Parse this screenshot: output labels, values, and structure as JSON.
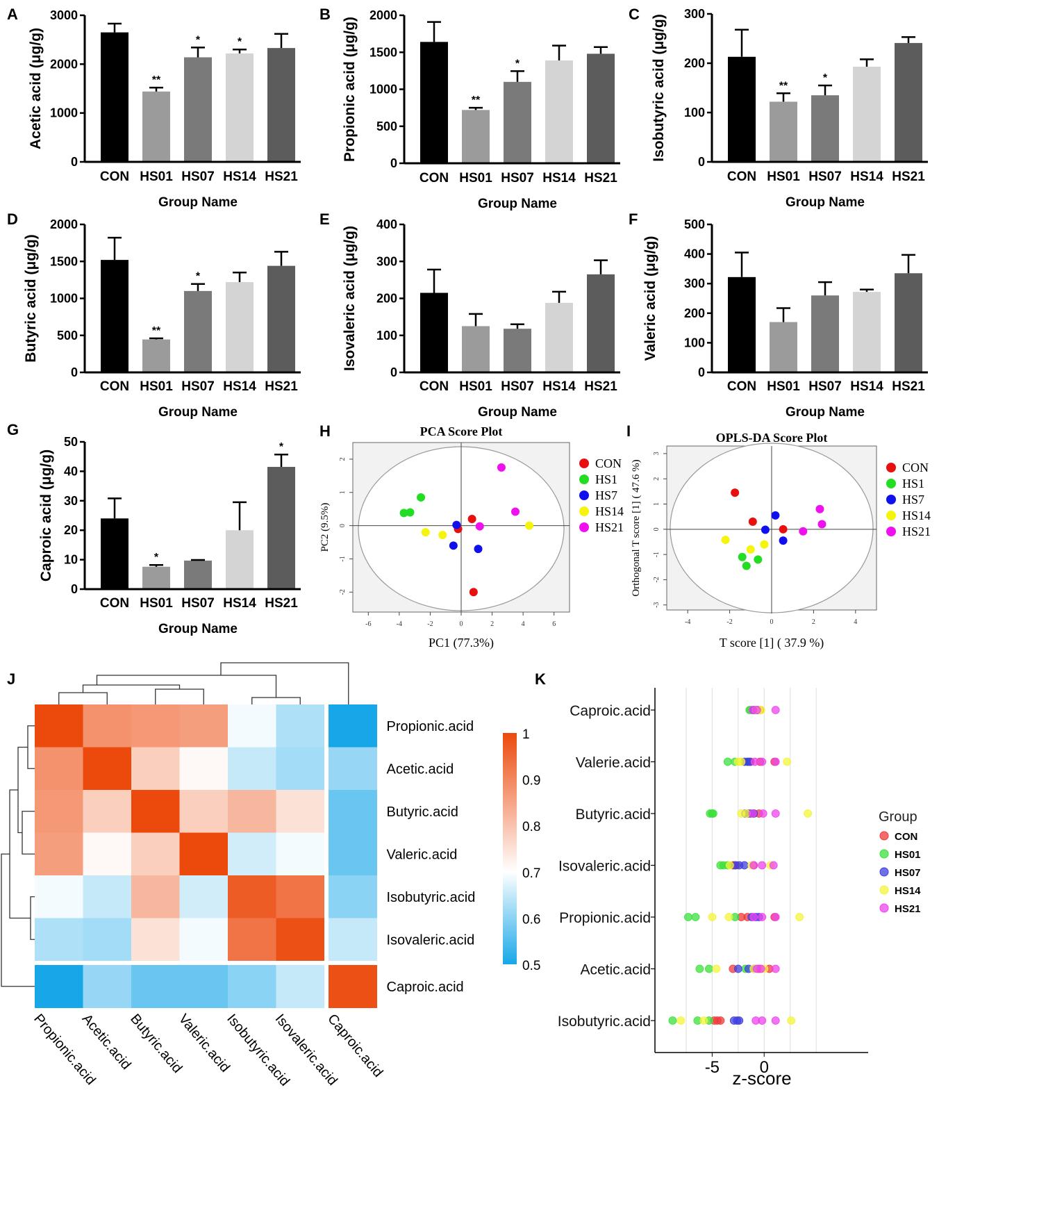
{
  "bar_panels": [
    {
      "letter": "A",
      "type": "bar",
      "ylabel": "Acetic acid (μg/g)",
      "xlabel": "Group Name",
      "ylim": [
        0,
        3000
      ],
      "ticks": [
        0,
        1000,
        2000,
        3000
      ],
      "categories": [
        "CON",
        "HS01",
        "HS07",
        "HS14",
        "HS21"
      ],
      "values": [
        2650,
        1440,
        2140,
        2220,
        2330
      ],
      "errors": [
        180,
        80,
        200,
        80,
        290
      ],
      "sig": [
        "",
        "**",
        "*",
        "*",
        ""
      ],
      "colors": [
        "#000000",
        "#9b9b9b",
        "#7a7a7a",
        "#d4d4d4",
        "#5c5c5c"
      ]
    },
    {
      "letter": "B",
      "type": "bar",
      "ylabel": "Propionic acid  (μg/g)",
      "xlabel": "Group Name",
      "ylim": [
        0,
        2000
      ],
      "ticks": [
        0,
        500,
        1000,
        1500,
        2000
      ],
      "categories": [
        "CON",
        "HS01",
        "HS07",
        "HS14",
        "HS21"
      ],
      "values": [
        1640,
        720,
        1100,
        1390,
        1480
      ],
      "errors": [
        270,
        30,
        145,
        200,
        90
      ],
      "sig": [
        "",
        "**",
        "*",
        "",
        ""
      ],
      "colors": [
        "#000000",
        "#9b9b9b",
        "#7a7a7a",
        "#d4d4d4",
        "#5c5c5c"
      ]
    },
    {
      "letter": "C",
      "type": "bar",
      "ylabel": "Isobutyric acid (μg/g)",
      "xlabel": "Group Name",
      "ylim": [
        0,
        300
      ],
      "ticks": [
        0,
        100,
        200,
        300
      ],
      "categories": [
        "CON",
        "HS01",
        "HS07",
        "HS14",
        "HS21"
      ],
      "values": [
        213,
        122,
        135,
        193,
        241
      ],
      "errors": [
        55,
        17,
        20,
        15,
        12
      ],
      "sig": [
        "",
        "**",
        "*",
        "",
        ""
      ],
      "colors": [
        "#000000",
        "#9b9b9b",
        "#7a7a7a",
        "#d4d4d4",
        "#5c5c5c"
      ]
    },
    {
      "letter": "D",
      "type": "bar",
      "ylabel": "Butyric acid (μg/g)",
      "xlabel": "Group Name",
      "ylim": [
        0,
        2000
      ],
      "ticks": [
        0,
        500,
        1000,
        1500,
        2000
      ],
      "categories": [
        "CON",
        "HS01",
        "HS07",
        "HS14",
        "HS21"
      ],
      "values": [
        1520,
        445,
        1100,
        1220,
        1440
      ],
      "errors": [
        300,
        15,
        95,
        130,
        190
      ],
      "sig": [
        "",
        "**",
        "*",
        "",
        ""
      ],
      "colors": [
        "#000000",
        "#9b9b9b",
        "#7a7a7a",
        "#d4d4d4",
        "#5c5c5c"
      ]
    },
    {
      "letter": "E",
      "type": "bar",
      "ylabel": "Isovaleric acid (μg/g)",
      "xlabel": "Group Name",
      "ylim": [
        0,
        400
      ],
      "ticks": [
        0,
        100,
        200,
        300,
        400
      ],
      "categories": [
        "CON",
        "HS01",
        "HS07",
        "HS14",
        "HS21"
      ],
      "values": [
        215,
        125,
        118,
        188,
        265
      ],
      "errors": [
        63,
        33,
        12,
        30,
        38
      ],
      "sig": [
        "",
        "",
        "",
        "",
        ""
      ],
      "colors": [
        "#000000",
        "#9b9b9b",
        "#7a7a7a",
        "#d4d4d4",
        "#5c5c5c"
      ]
    },
    {
      "letter": "F",
      "type": "bar",
      "ylabel": "Valeric acid (μg/g)",
      "xlabel": "Group Name",
      "ylim": [
        0,
        500
      ],
      "ticks": [
        0,
        100,
        200,
        300,
        400,
        500
      ],
      "categories": [
        "CON",
        "HS01",
        "HS07",
        "HS14",
        "HS21"
      ],
      "values": [
        322,
        170,
        260,
        272,
        335
      ],
      "errors": [
        83,
        47,
        45,
        8,
        62
      ],
      "sig": [
        "",
        "",
        "",
        "",
        ""
      ],
      "colors": [
        "#000000",
        "#9b9b9b",
        "#7a7a7a",
        "#d4d4d4",
        "#5c5c5c"
      ]
    },
    {
      "letter": "G",
      "type": "bar",
      "ylabel": "Caproic acid (μg/g)",
      "xlabel": "Group Name",
      "ylim": [
        0,
        50
      ],
      "ticks": [
        0,
        10,
        20,
        30,
        40,
        50
      ],
      "categories": [
        "CON",
        "HS01",
        "HS07",
        "HS14",
        "HS21"
      ],
      "values": [
        24,
        7.6,
        9.7,
        20,
        41.5
      ],
      "errors": [
        6.8,
        0.6,
        0.2,
        9.5,
        4.2
      ],
      "sig": [
        "",
        "*",
        "",
        "",
        "*"
      ],
      "colors": [
        "#000000",
        "#9b9b9b",
        "#7a7a7a",
        "#d4d4d4",
        "#5c5c5c"
      ]
    }
  ],
  "pca": {
    "letter": "H",
    "type": "scatter",
    "title": "PCA Score Plot",
    "xlabel": "PC1 (77.3%)",
    "ylabel": "PC2 (9.5%)",
    "xlim": [
      -7,
      7
    ],
    "ylim": [
      -2.6,
      2.5
    ],
    "xticks": [
      -6,
      -4,
      -2,
      0,
      2,
      4,
      6
    ],
    "yticks": [
      -2,
      -1,
      0,
      1,
      2
    ],
    "groups": [
      {
        "name": "CON",
        "color": "#e8100f",
        "points": [
          [
            0.7,
            0.2
          ],
          [
            -0.2,
            -0.1
          ],
          [
            0.8,
            -2.0
          ]
        ]
      },
      {
        "name": "HS1",
        "color": "#22dd22",
        "points": [
          [
            -2.6,
            0.85
          ],
          [
            -3.3,
            0.4
          ],
          [
            -3.7,
            0.38
          ]
        ]
      },
      {
        "name": "HS7",
        "color": "#1010ee",
        "points": [
          [
            -0.3,
            0.02
          ],
          [
            -0.5,
            -0.6
          ],
          [
            1.1,
            -0.7
          ]
        ]
      },
      {
        "name": "HS14",
        "color": "#f4f40c",
        "points": [
          [
            -2.3,
            -0.2
          ],
          [
            -1.2,
            -0.28
          ],
          [
            4.4,
            0.0
          ]
        ]
      },
      {
        "name": "HS21",
        "color": "#ee11ee",
        "points": [
          [
            2.6,
            1.75
          ],
          [
            3.5,
            0.42
          ],
          [
            1.2,
            -0.02
          ]
        ]
      }
    ]
  },
  "opls": {
    "letter": "I",
    "type": "scatter",
    "title": "OPLS-DA Score Plot",
    "xlabel": "T score [1] ( 37.9 %)",
    "ylabel": "Orthogonal T score [1] ( 47.6 %)",
    "xlim": [
      -5,
      5
    ],
    "ylim": [
      -3.2,
      3.3
    ],
    "xticks": [
      -4,
      -2,
      0,
      2,
      4
    ],
    "yticks": [
      -3,
      -2,
      -1,
      0,
      1,
      2,
      3
    ],
    "groups": [
      {
        "name": "CON",
        "color": "#e8100f",
        "points": [
          [
            -1.75,
            1.45
          ],
          [
            -0.9,
            0.3
          ],
          [
            0.55,
            0.0
          ]
        ]
      },
      {
        "name": "HS1",
        "color": "#22dd22",
        "points": [
          [
            -1.4,
            -1.1
          ],
          [
            -1.2,
            -1.45
          ],
          [
            -0.65,
            -1.2
          ]
        ]
      },
      {
        "name": "HS7",
        "color": "#1010ee",
        "points": [
          [
            0.18,
            0.55
          ],
          [
            -0.3,
            -0.02
          ],
          [
            0.55,
            -0.45
          ]
        ]
      },
      {
        "name": "HS14",
        "color": "#f4f40c",
        "points": [
          [
            -2.2,
            -0.42
          ],
          [
            -1.0,
            -0.8
          ],
          [
            -0.35,
            -0.6
          ]
        ]
      },
      {
        "name": "HS21",
        "color": "#ee11ee",
        "points": [
          [
            1.5,
            -0.08
          ],
          [
            2.3,
            0.8
          ],
          [
            2.4,
            0.2
          ]
        ]
      }
    ]
  },
  "heatmap": {
    "letter": "J",
    "type": "heatmap",
    "row_labels": [
      "Propionic.acid",
      "Acetic.acid",
      "Butyric.acid",
      "Valeric.acid",
      "Isobutyric.acid",
      "Isovaleric.acid",
      "Caproic.acid"
    ],
    "col_labels": [
      "Propionic.acid",
      "Acetic.acid",
      "Butyric.acid",
      "Valeric.acid",
      "Isobutyric.acid",
      "Isovaleric.acid",
      "Caproic.acid"
    ],
    "values": [
      [
        1.0,
        0.88,
        0.87,
        0.86,
        0.69,
        0.63,
        0.5
      ],
      [
        0.88,
        1.0,
        0.78,
        0.71,
        0.65,
        0.62,
        0.61
      ],
      [
        0.87,
        0.78,
        1.0,
        0.78,
        0.82,
        0.75,
        0.57
      ],
      [
        0.86,
        0.71,
        0.78,
        1.0,
        0.66,
        0.69,
        0.57
      ],
      [
        0.69,
        0.65,
        0.82,
        0.66,
        0.97,
        0.93,
        0.6
      ],
      [
        0.63,
        0.62,
        0.75,
        0.69,
        0.93,
        0.99,
        0.65
      ],
      [
        0.5,
        0.61,
        0.57,
        0.57,
        0.6,
        0.65,
        0.99
      ]
    ],
    "colorbar_ticks": [
      "1",
      "0.9",
      "0.8",
      "0.7",
      "0.6",
      "0.5"
    ],
    "color_low": "#17a7e8",
    "color_mid": "#ffffff",
    "color_high": "#ec4a0d"
  },
  "zscore": {
    "letter": "K",
    "type": "scatter",
    "xlabel": "z-score",
    "xlim": [
      -10.5,
      10
    ],
    "xticks": [
      -5,
      0
    ],
    "legend_title": "Group",
    "acids": [
      "Caproic.acid",
      "Valerie.acid",
      "Butyric.acid",
      "Isovaleric.acid",
      "Propionic.acid",
      "Acetic.acid",
      "Isobutyric.acid"
    ],
    "groups": [
      {
        "name": "CON",
        "color": "#f03a3a",
        "values": [
          [
            -0.9,
            -0.6,
            -0.4
          ],
          [
            -1.3,
            -0.4,
            1.0
          ],
          [
            -1.5,
            -1.0,
            -0.5
          ],
          [
            -3.0,
            -2.7,
            -1.0
          ],
          [
            -2.2,
            -1.6,
            1.0
          ],
          [
            -3.0,
            -0.5,
            0.5
          ],
          [
            -4.8,
            -4.5,
            -4.2
          ]
        ]
      },
      {
        "name": "HS01",
        "color": "#3be03b",
        "values": [
          [
            -1.4,
            -1.3,
            -1.1
          ],
          [
            -3.5,
            -2.8,
            -1.6
          ],
          [
            -5.2,
            -5.0,
            -4.9
          ],
          [
            -4.2,
            -3.9,
            -3.5
          ],
          [
            -7.3,
            -6.6,
            -2.8
          ],
          [
            -6.2,
            -5.3,
            -1.8
          ],
          [
            -8.8,
            -6.4,
            -5.3
          ]
        ]
      },
      {
        "name": "HS07",
        "color": "#4040dd",
        "values": [
          [
            -1.0,
            -0.8,
            -0.6
          ],
          [
            -1.9,
            -1.6,
            -1.4
          ],
          [
            -1.8,
            -1.3,
            -1.0
          ],
          [
            -2.8,
            -2.4,
            -1.9
          ],
          [
            -1.2,
            -0.8,
            -0.5
          ],
          [
            -2.5,
            -1.5,
            -1.0
          ],
          [
            -2.9,
            -2.6,
            -2.4
          ]
        ]
      },
      {
        "name": "HS14",
        "color": "#f4f43a",
        "values": [
          [
            -0.8,
            -0.5,
            -0.3
          ],
          [
            -2.5,
            -2.2,
            2.2
          ],
          [
            -2.2,
            -1.7,
            4.2
          ],
          [
            -3.3,
            -1.2,
            0.6
          ],
          [
            -5.0,
            -3.4,
            3.4
          ],
          [
            -4.6,
            -1.0,
            0.0
          ],
          [
            -8.0,
            -5.8,
            2.6
          ]
        ]
      },
      {
        "name": "HS21",
        "color": "#ee44ee",
        "values": [
          [
            -1.1,
            -0.7,
            1.1
          ],
          [
            -0.9,
            -0.2,
            1.1
          ],
          [
            -1.1,
            -0.1,
            1.1
          ],
          [
            -1.0,
            -0.2,
            0.9
          ],
          [
            -1.0,
            -0.2,
            1.1
          ],
          [
            -0.7,
            -0.3,
            1.1
          ],
          [
            -0.8,
            -0.2,
            1.1
          ]
        ]
      }
    ]
  }
}
